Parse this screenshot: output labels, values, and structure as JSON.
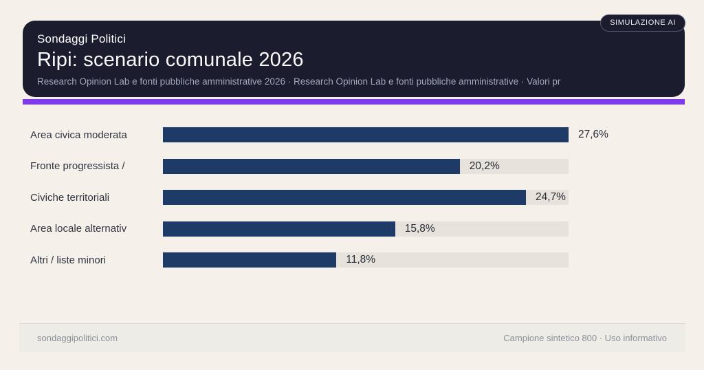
{
  "badge": {
    "label": "SIMULAZIONE AI"
  },
  "header": {
    "kicker": "Sondaggi Politici",
    "title": "Ripi: scenario comunale 2026",
    "subtitle": "Research Opinion Lab e fonti pubbliche amministrative 2026 · Research Opinion Lab e fonti pubbliche amministrative · Valori pr"
  },
  "chart_data": {
    "type": "bar",
    "orientation": "horizontal",
    "categories": [
      "Area civica moderata",
      "Fronte progressista /",
      "Civiche territoriali",
      "Area locale alternativ",
      "Altri / liste minori"
    ],
    "values": [
      27.6,
      20.2,
      24.7,
      15.8,
      11.8
    ],
    "value_labels": [
      "27,6%",
      "20,2%",
      "24,7%",
      "15,8%",
      "11,8%"
    ],
    "x_scale_max": 27.6,
    "grid": false,
    "legend": "none",
    "bar_color": "#1e3a66",
    "track_color": "#e7e3dc"
  },
  "footer": {
    "left": "sondaggipolitici.com",
    "right": "Campione sintetico 800 · Uso informativo"
  },
  "colors": {
    "page_bg": "#f5f0ea",
    "card_bg": "#1b1c2e",
    "accent_purple": "#7d3ce8",
    "bar_navy": "#1e3a66"
  }
}
